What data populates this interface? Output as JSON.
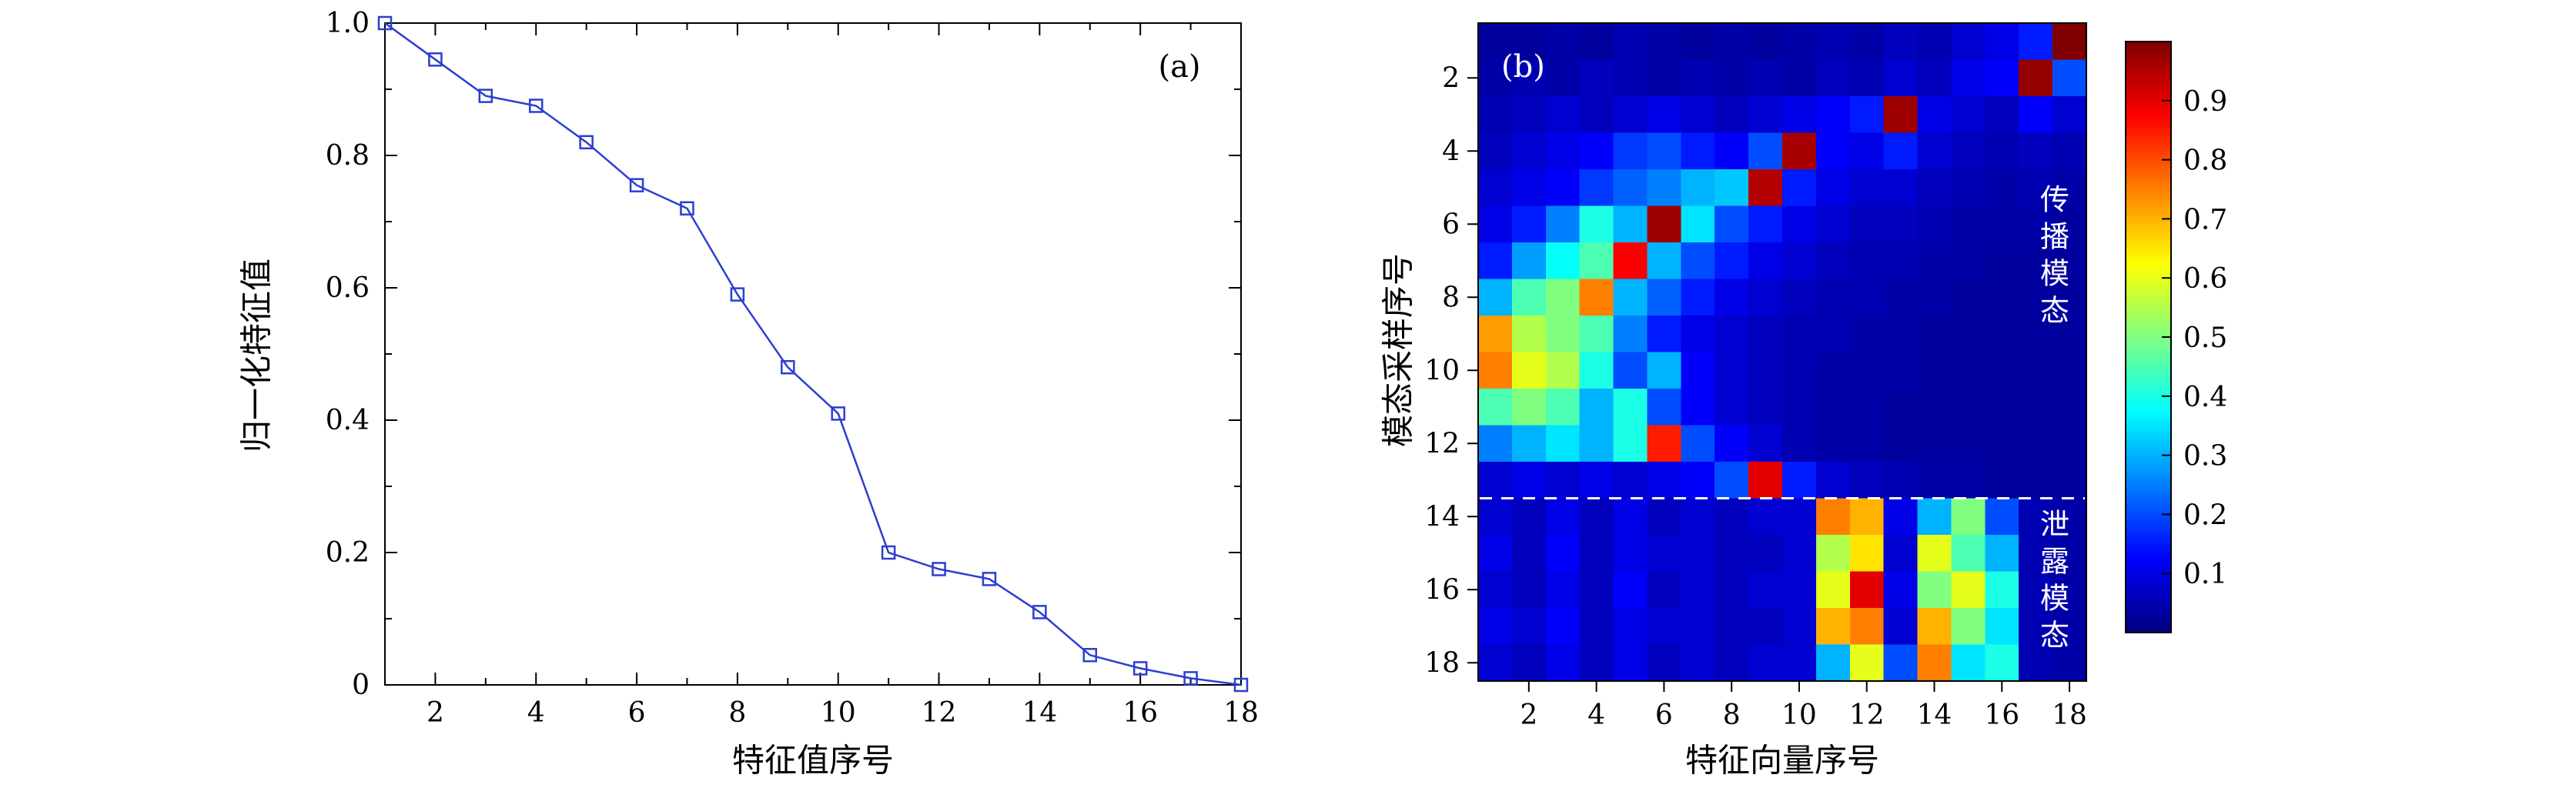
{
  "figure": {
    "background": "#ffffff",
    "panel_a": {
      "label": "(a)",
      "xlabel": "特征值序号",
      "ylabel": "归一化特征值",
      "x_ticks": [
        2,
        4,
        6,
        8,
        10,
        12,
        14,
        16,
        18
      ],
      "y_ticks": [
        0,
        0.2,
        0.4,
        0.6,
        0.8,
        1.0
      ],
      "line_color": "#2b3fd0"
    },
    "panel_b": {
      "label": "(b)",
      "xlabel": "特征向量序号",
      "ylabel": "模态采样序号",
      "x_ticks": [
        2,
        4,
        6,
        8,
        10,
        12,
        14,
        16,
        18
      ],
      "y_ticks": [
        2,
        4,
        6,
        8,
        10,
        12,
        14,
        16,
        18
      ],
      "annotation_top": "传播模态",
      "annotation_bottom": "泄露模态",
      "colorbar_ticks": [
        0.9,
        0.8,
        0.7,
        0.6,
        0.5,
        0.4,
        0.3,
        0.2,
        0.1
      ],
      "dashed_line_color": "#ffffff"
    }
  },
  "chart_data": [
    {
      "type": "line",
      "title": "",
      "xlabel": "特征值序号",
      "ylabel": "归一化特征值",
      "marker": "open-square",
      "xlim": [
        1,
        18
      ],
      "ylim": [
        0,
        1.0
      ],
      "x": [
        1,
        2,
        3,
        4,
        5,
        6,
        7,
        8,
        9,
        10,
        11,
        12,
        13,
        14,
        15,
        16,
        17,
        18
      ],
      "y": [
        1.0,
        0.945,
        0.89,
        0.875,
        0.82,
        0.755,
        0.72,
        0.59,
        0.48,
        0.41,
        0.2,
        0.175,
        0.16,
        0.11,
        0.045,
        0.025,
        0.01,
        0.0
      ]
    },
    {
      "type": "heatmap",
      "xlabel": "特征向量序号",
      "ylabel": "模态采样序号",
      "colormap": "jet",
      "vmin": 0,
      "vmax": 1,
      "x_range": [
        1,
        18
      ],
      "y_range": [
        1,
        18
      ],
      "dashed_line_y": 13.5,
      "values": [
        [
          0.03,
          0.03,
          0.04,
          0.03,
          0.05,
          0.04,
          0.03,
          0.04,
          0.03,
          0.04,
          0.05,
          0.04,
          0.06,
          0.05,
          0.08,
          0.1,
          0.15,
          1.0
        ],
        [
          0.04,
          0.05,
          0.04,
          0.06,
          0.05,
          0.04,
          0.05,
          0.04,
          0.05,
          0.04,
          0.06,
          0.05,
          0.08,
          0.06,
          0.1,
          0.12,
          0.98,
          0.2
        ],
        [
          0.05,
          0.06,
          0.08,
          0.06,
          0.08,
          0.1,
          0.08,
          0.06,
          0.08,
          0.1,
          0.12,
          0.15,
          0.97,
          0.1,
          0.08,
          0.06,
          0.12,
          0.08
        ],
        [
          0.06,
          0.08,
          0.1,
          0.12,
          0.18,
          0.2,
          0.15,
          0.12,
          0.2,
          0.96,
          0.12,
          0.1,
          0.15,
          0.08,
          0.06,
          0.05,
          0.06,
          0.05
        ],
        [
          0.08,
          0.1,
          0.12,
          0.18,
          0.22,
          0.25,
          0.3,
          0.32,
          0.95,
          0.15,
          0.1,
          0.08,
          0.08,
          0.06,
          0.05,
          0.04,
          0.05,
          0.04
        ],
        [
          0.1,
          0.15,
          0.25,
          0.4,
          0.3,
          0.97,
          0.35,
          0.2,
          0.15,
          0.1,
          0.08,
          0.06,
          0.06,
          0.05,
          0.04,
          0.04,
          0.04,
          0.03
        ],
        [
          0.15,
          0.28,
          0.38,
          0.45,
          0.88,
          0.3,
          0.2,
          0.15,
          0.1,
          0.08,
          0.06,
          0.05,
          0.05,
          0.04,
          0.04,
          0.03,
          0.03,
          0.03
        ],
        [
          0.3,
          0.45,
          0.5,
          0.75,
          0.3,
          0.22,
          0.15,
          0.1,
          0.08,
          0.06,
          0.05,
          0.05,
          0.04,
          0.04,
          0.03,
          0.03,
          0.03,
          0.03
        ],
        [
          0.72,
          0.55,
          0.5,
          0.45,
          0.25,
          0.15,
          0.1,
          0.08,
          0.06,
          0.05,
          0.05,
          0.04,
          0.04,
          0.03,
          0.03,
          0.03,
          0.03,
          0.03
        ],
        [
          0.75,
          0.6,
          0.55,
          0.4,
          0.2,
          0.3,
          0.12,
          0.08,
          0.06,
          0.05,
          0.04,
          0.04,
          0.04,
          0.03,
          0.03,
          0.03,
          0.03,
          0.03
        ],
        [
          0.45,
          0.5,
          0.45,
          0.3,
          0.4,
          0.2,
          0.12,
          0.08,
          0.06,
          0.05,
          0.04,
          0.04,
          0.03,
          0.03,
          0.03,
          0.03,
          0.03,
          0.03
        ],
        [
          0.25,
          0.3,
          0.35,
          0.3,
          0.4,
          0.85,
          0.2,
          0.12,
          0.08,
          0.05,
          0.04,
          0.04,
          0.03,
          0.03,
          0.03,
          0.03,
          0.03,
          0.03
        ],
        [
          0.08,
          0.1,
          0.08,
          0.1,
          0.08,
          0.1,
          0.12,
          0.2,
          0.9,
          0.15,
          0.08,
          0.06,
          0.05,
          0.04,
          0.04,
          0.03,
          0.03,
          0.03
        ],
        [
          0.08,
          0.06,
          0.1,
          0.06,
          0.1,
          0.06,
          0.08,
          0.06,
          0.08,
          0.08,
          0.75,
          0.7,
          0.1,
          0.3,
          0.5,
          0.2,
          0.05,
          0.04
        ],
        [
          0.1,
          0.06,
          0.12,
          0.06,
          0.1,
          0.08,
          0.08,
          0.06,
          0.06,
          0.08,
          0.55,
          0.65,
          0.08,
          0.6,
          0.45,
          0.3,
          0.05,
          0.04
        ],
        [
          0.08,
          0.06,
          0.1,
          0.06,
          0.12,
          0.06,
          0.08,
          0.06,
          0.08,
          0.08,
          0.6,
          0.9,
          0.1,
          0.5,
          0.6,
          0.4,
          0.05,
          0.04
        ],
        [
          0.1,
          0.08,
          0.12,
          0.06,
          0.1,
          0.08,
          0.08,
          0.06,
          0.06,
          0.08,
          0.7,
          0.75,
          0.08,
          0.7,
          0.5,
          0.35,
          0.05,
          0.04
        ],
        [
          0.08,
          0.06,
          0.1,
          0.06,
          0.1,
          0.06,
          0.08,
          0.06,
          0.08,
          0.08,
          0.3,
          0.6,
          0.2,
          0.75,
          0.35,
          0.4,
          0.05,
          0.04
        ]
      ]
    }
  ]
}
